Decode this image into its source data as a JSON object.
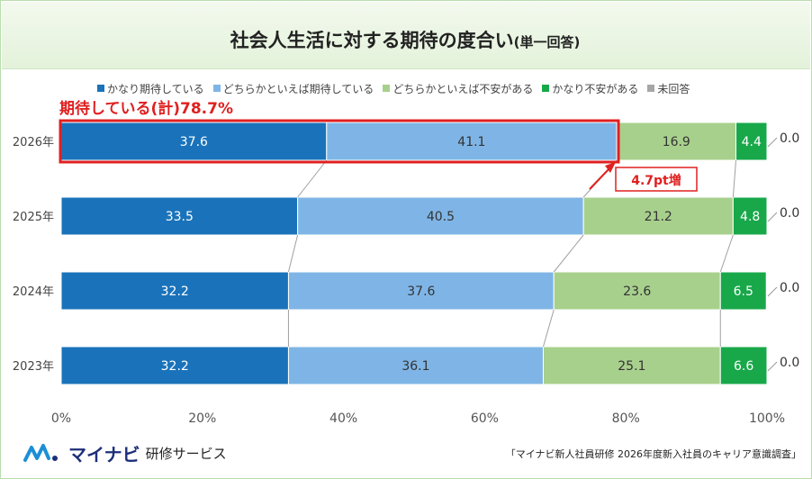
{
  "title": {
    "main": "社会人生活に対する期待の度合い",
    "sub": "(単一回答)"
  },
  "colors": {
    "very_expect": "#1a73ba",
    "somewhat_expect": "#7fb5e6",
    "somewhat_anxious": "#a8d08d",
    "very_anxious": "#18a84a",
    "no_answer": "#a6a6a6",
    "highlight": "#e02020"
  },
  "chart_data": {
    "type": "bar",
    "orientation": "horizontal",
    "stacked": true,
    "categories": [
      "2026年",
      "2025年",
      "2024年",
      "2023年"
    ],
    "series": [
      {
        "name": "かなり期待している",
        "values": [
          37.6,
          33.5,
          32.2,
          32.2
        ]
      },
      {
        "name": "どちらかといえば期待している",
        "values": [
          41.1,
          40.5,
          37.6,
          36.1
        ]
      },
      {
        "name": "どちらかといえば不安がある",
        "values": [
          16.9,
          21.2,
          23.6,
          25.1
        ]
      },
      {
        "name": "かなり不安がある",
        "values": [
          4.4,
          4.8,
          6.5,
          6.6
        ]
      },
      {
        "name": "未回答",
        "values": [
          0.0,
          0.0,
          0.0,
          0.0
        ]
      }
    ],
    "xlim": [
      0,
      100
    ],
    "xticks": [
      "0%",
      "20%",
      "40%",
      "60%",
      "80%",
      "100%"
    ],
    "legend_position": "top",
    "grid": false,
    "annotations": {
      "total_label": "期待している(計)78.7%",
      "increase_label": "4.7pt増"
    }
  },
  "brand": {
    "name": "マイナビ",
    "service": "研修サービス"
  },
  "source": "「マイナビ新人社員研修 2026年度新入社員のキャリア意識調査」"
}
